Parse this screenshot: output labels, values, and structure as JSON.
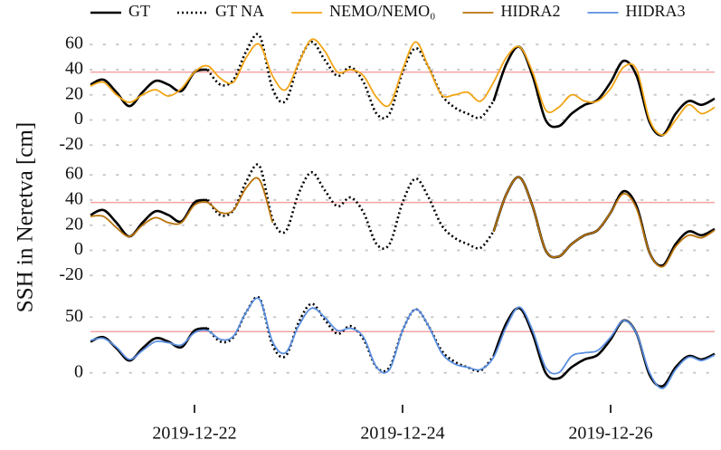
{
  "chart_data": [
    {
      "type": "line",
      "xlim": [
        21,
        27
      ],
      "ylim": [
        -27,
        68
      ],
      "yticks": [
        -20,
        0,
        20,
        40,
        60
      ],
      "grid": true,
      "threshold": 38,
      "threshold_color": "#f4a3a3",
      "x": [
        21,
        21.125,
        21.25,
        21.375,
        21.5,
        21.625,
        21.75,
        21.875,
        22,
        22.125,
        22.25,
        22.375,
        22.5,
        22.625,
        22.75,
        22.875,
        23,
        23.125,
        23.25,
        23.375,
        23.5,
        23.625,
        23.75,
        23.875,
        24,
        24.125,
        24.25,
        24.375,
        24.5,
        24.625,
        24.75,
        24.875,
        25,
        25.125,
        25.25,
        25.375,
        25.5,
        25.625,
        25.75,
        25.875,
        26,
        26.125,
        26.25,
        26.375,
        26.5,
        26.625,
        26.75,
        26.875,
        27
      ],
      "series": [
        {
          "name": "GT",
          "color": "#000000",
          "style": "solid",
          "values": [
            28,
            32,
            22,
            11,
            22,
            31,
            28,
            23,
            38,
            40,
            null,
            null,
            null,
            null,
            null,
            null,
            null,
            null,
            null,
            null,
            null,
            null,
            null,
            null,
            null,
            null,
            null,
            null,
            null,
            null,
            null,
            15,
            45,
            58,
            35,
            0,
            -5,
            5,
            12,
            16,
            30,
            47,
            35,
            -2,
            -12,
            5,
            15,
            12,
            17
          ]
        },
        {
          "name": "GT NA",
          "color": "#000000",
          "style": "dotted",
          "values": [
            null,
            null,
            null,
            null,
            null,
            null,
            null,
            null,
            null,
            40,
            28,
            32,
            55,
            67,
            25,
            15,
            45,
            62,
            48,
            35,
            42,
            30,
            5,
            5,
            38,
            57,
            42,
            20,
            10,
            5,
            2,
            15,
            null,
            null,
            null,
            null,
            null,
            null,
            null,
            null,
            null,
            null,
            null,
            null,
            null,
            null,
            null,
            null,
            null
          ]
        },
        {
          "name": "NEMO/NEMO₀",
          "color": "#f2a516",
          "style": "solid",
          "values": [
            27,
            30,
            20,
            14,
            20,
            24,
            19,
            25,
            38,
            43,
            33,
            30,
            50,
            60,
            35,
            24,
            45,
            64,
            55,
            38,
            40,
            35,
            18,
            12,
            40,
            62,
            42,
            20,
            20,
            22,
            15,
            30,
            50,
            58,
            38,
            8,
            10,
            20,
            15,
            15,
            25,
            42,
            40,
            0,
            -12,
            0,
            12,
            5,
            10
          ]
        }
      ]
    },
    {
      "type": "line",
      "xlim": [
        21,
        27
      ],
      "ylim": [
        -27,
        68
      ],
      "yticks": [
        -20,
        0,
        20,
        40,
        60
      ],
      "grid": true,
      "threshold": 38,
      "threshold_color": "#f4a3a3",
      "ylabel": "SSH in Neretva [cm]",
      "x": [
        21,
        21.125,
        21.25,
        21.375,
        21.5,
        21.625,
        21.75,
        21.875,
        22,
        22.125,
        22.25,
        22.375,
        22.5,
        22.625,
        22.75,
        22.875,
        23,
        23.125,
        23.25,
        23.375,
        23.5,
        23.625,
        23.75,
        23.875,
        24,
        24.125,
        24.25,
        24.375,
        24.5,
        24.625,
        24.75,
        24.875,
        25,
        25.125,
        25.25,
        25.375,
        25.5,
        25.625,
        25.75,
        25.875,
        26,
        26.125,
        26.25,
        26.375,
        26.5,
        26.625,
        26.75,
        26.875,
        27
      ],
      "series": [
        {
          "name": "GT",
          "color": "#000000",
          "style": "solid",
          "values": [
            28,
            32,
            22,
            11,
            22,
            31,
            28,
            23,
            38,
            40,
            null,
            null,
            null,
            null,
            null,
            null,
            null,
            null,
            null,
            null,
            null,
            null,
            null,
            null,
            null,
            null,
            null,
            null,
            null,
            null,
            null,
            15,
            45,
            58,
            35,
            0,
            -5,
            5,
            12,
            16,
            30,
            47,
            35,
            -2,
            -12,
            5,
            15,
            12,
            17
          ]
        },
        {
          "name": "GT NA",
          "color": "#000000",
          "style": "dotted",
          "values": [
            null,
            null,
            null,
            null,
            null,
            null,
            null,
            null,
            null,
            40,
            28,
            32,
            55,
            67,
            25,
            15,
            45,
            62,
            48,
            35,
            42,
            30,
            5,
            5,
            38,
            57,
            42,
            20,
            10,
            5,
            2,
            15,
            null,
            null,
            null,
            null,
            null,
            null,
            null,
            null,
            null,
            null,
            null,
            null,
            null,
            null,
            null,
            null,
            null
          ]
        },
        {
          "name": "HIDRA2",
          "color": "#b8730a",
          "style": "solid",
          "values": [
            27,
            27,
            18,
            11,
            20,
            26,
            22,
            22,
            36,
            38,
            30,
            32,
            50,
            56,
            22,
            null,
            null,
            null,
            null,
            null,
            null,
            null,
            null,
            null,
            null,
            null,
            null,
            null,
            null,
            null,
            null,
            15,
            45,
            58,
            35,
            0,
            -5,
            5,
            12,
            16,
            30,
            45,
            33,
            -2,
            -13,
            3,
            12,
            10,
            16
          ]
        }
      ]
    },
    {
      "type": "line",
      "xlim": [
        21,
        27
      ],
      "ylim": [
        -23,
        73
      ],
      "yticks": [
        0,
        50
      ],
      "grid": true,
      "threshold": 37,
      "threshold_color": "#f4a3a3",
      "xticks": [
        {
          "value": 22,
          "label": "2019-12-22"
        },
        {
          "value": 24,
          "label": "2019-12-24"
        },
        {
          "value": 26,
          "label": "2019-12-26"
        }
      ],
      "x": [
        21,
        21.125,
        21.25,
        21.375,
        21.5,
        21.625,
        21.75,
        21.875,
        22,
        22.125,
        22.25,
        22.375,
        22.5,
        22.625,
        22.75,
        22.875,
        23,
        23.125,
        23.25,
        23.375,
        23.5,
        23.625,
        23.75,
        23.875,
        24,
        24.125,
        24.25,
        24.375,
        24.5,
        24.625,
        24.75,
        24.875,
        25,
        25.125,
        25.25,
        25.375,
        25.5,
        25.625,
        25.75,
        25.875,
        26,
        26.125,
        26.25,
        26.375,
        26.5,
        26.625,
        26.75,
        26.875,
        27
      ],
      "series": [
        {
          "name": "GT",
          "color": "#000000",
          "style": "solid",
          "values": [
            28,
            32,
            22,
            11,
            22,
            31,
            28,
            23,
            38,
            40,
            null,
            null,
            null,
            null,
            null,
            null,
            null,
            null,
            null,
            null,
            null,
            null,
            null,
            null,
            null,
            null,
            null,
            null,
            null,
            null,
            null,
            15,
            45,
            58,
            35,
            0,
            -5,
            5,
            12,
            16,
            30,
            47,
            35,
            -2,
            -12,
            5,
            15,
            12,
            17
          ]
        },
        {
          "name": "GT NA",
          "color": "#000000",
          "style": "dotted",
          "values": [
            null,
            null,
            null,
            null,
            null,
            null,
            null,
            null,
            null,
            40,
            28,
            32,
            55,
            67,
            25,
            15,
            45,
            62,
            48,
            35,
            42,
            30,
            5,
            5,
            38,
            57,
            42,
            20,
            10,
            5,
            2,
            15,
            null,
            null,
            null,
            null,
            null,
            null,
            null,
            null,
            null,
            null,
            null,
            null,
            null,
            null,
            null,
            null,
            null
          ]
        },
        {
          "name": "HIDRA3",
          "color": "#5b8fe0",
          "style": "solid",
          "values": [
            29,
            31,
            23,
            12,
            20,
            28,
            27,
            25,
            36,
            38,
            30,
            33,
            55,
            66,
            28,
            18,
            42,
            58,
            50,
            38,
            40,
            32,
            5,
            3,
            38,
            57,
            42,
            18,
            8,
            5,
            3,
            14,
            42,
            59,
            38,
            5,
            0,
            15,
            18,
            20,
            32,
            47,
            35,
            0,
            -14,
            3,
            14,
            11,
            16
          ]
        }
      ]
    }
  ]
}
